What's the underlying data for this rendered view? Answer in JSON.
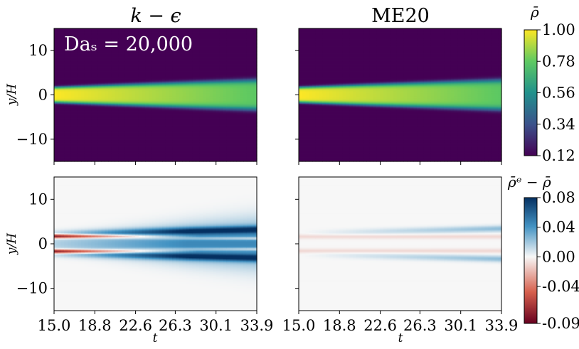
{
  "chart_data": [
    {
      "type": "heatmap",
      "panel": "top-left",
      "title": "k − ϵ",
      "annotation": "Daₛ = 20,000",
      "ylabel": "y/H",
      "xlabel": "",
      "xlim": [
        15.0,
        33.9
      ],
      "ylim": [
        -15,
        15
      ],
      "yticks": [
        "10",
        "0",
        "−10"
      ],
      "ytick_values": [
        10,
        0,
        -10
      ],
      "xtick_values": [
        15.0,
        18.8,
        22.6,
        26.3,
        30.1,
        33.9
      ],
      "field": {
        "kind": "density",
        "peak": 1.0,
        "background": 0.12,
        "halfwidth_start": 1.8,
        "spread_rate": 0.05
      }
    },
    {
      "type": "heatmap",
      "panel": "top-right",
      "title": "ME20",
      "xlim": [
        15.0,
        33.9
      ],
      "ylim": [
        -15,
        15
      ],
      "xtick_values": [
        15.0,
        18.8,
        22.6,
        26.3,
        30.1,
        33.9
      ],
      "field": {
        "kind": "density",
        "peak": 1.0,
        "background": 0.12,
        "halfwidth_start": 1.8,
        "spread_rate": 0.05
      }
    },
    {
      "type": "heatmap",
      "panel": "bottom-left",
      "ylabel": "y/H",
      "xlabel": "t",
      "xlim": [
        15.0,
        33.9
      ],
      "ylim": [
        -15,
        15
      ],
      "yticks": [
        "10",
        "0",
        "−10"
      ],
      "ytick_values": [
        10,
        0,
        -10
      ],
      "xticks": [
        "15.0",
        "18.8",
        "22.6",
        "26.3",
        "30.1",
        "33.9"
      ],
      "xtick_values": [
        15.0,
        18.8,
        22.6,
        26.3,
        30.1,
        33.9
      ],
      "field": {
        "kind": "difference",
        "strength": 1.0
      }
    },
    {
      "type": "heatmap",
      "panel": "bottom-right",
      "xlabel": "t",
      "xlim": [
        15.0,
        33.9
      ],
      "ylim": [
        -15,
        15
      ],
      "xticks": [
        "15.0",
        "18.8",
        "22.6",
        "26.3",
        "30.1",
        "33.9"
      ],
      "xtick_values": [
        15.0,
        18.8,
        22.6,
        26.3,
        30.1,
        33.9
      ],
      "field": {
        "kind": "difference",
        "strength": 0.3
      }
    }
  ],
  "colorbars": [
    {
      "title": "ρ̄",
      "colormap": "viridis",
      "range": [
        0.12,
        1.0
      ],
      "ticks": [
        "1.00",
        "0.78",
        "0.56",
        "0.34",
        "0.12"
      ],
      "tick_values": [
        1.0,
        0.78,
        0.56,
        0.34,
        0.12
      ],
      "stops": [
        "#440154",
        "#3b528b",
        "#21918c",
        "#5ec962",
        "#fde725"
      ]
    },
    {
      "title": "ρ̄ᵉ − ρ̄",
      "colormap": "RdBu",
      "range": [
        -0.09,
        0.08
      ],
      "ticks": [
        "0.08",
        "0.04",
        "0.00",
        "-0.04",
        "-0.09"
      ],
      "tick_values": [
        0.08,
        0.04,
        0.0,
        -0.04,
        -0.09
      ],
      "stops": [
        "#67001f",
        "#d6604d",
        "#f7f7f7",
        "#4393c3",
        "#053061"
      ]
    }
  ]
}
